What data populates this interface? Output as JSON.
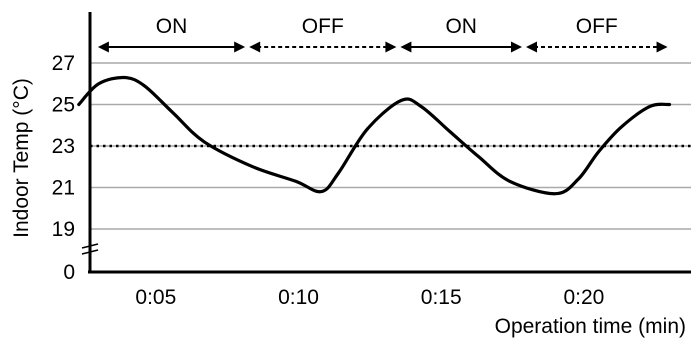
{
  "chart_data": {
    "type": "line",
    "title": "",
    "xlabel": "Operation time (min)",
    "ylabel": "Indoor Temp (°C)",
    "x_ticks": [
      {
        "label": "0:05",
        "minutes": 5
      },
      {
        "label": "0:10",
        "minutes": 10
      },
      {
        "label": "0:15",
        "minutes": 15
      },
      {
        "label": "0:20",
        "minutes": 20
      }
    ],
    "y_ticks": [
      "0",
      "19",
      "21",
      "23",
      "25",
      "27"
    ],
    "y_axis_break": true,
    "grid": {
      "horizontal": true,
      "vertical": false
    },
    "reference_line": {
      "y": 23,
      "style": "dotted"
    },
    "phases": [
      {
        "label": "ON",
        "start": 2.9,
        "end": 8.2,
        "arrow_style": "solid"
      },
      {
        "label": "OFF",
        "start": 8.2,
        "end": 13.5,
        "arrow_style": "dashed"
      },
      {
        "label": "ON",
        "start": 13.5,
        "end": 17.9,
        "arrow_style": "solid"
      },
      {
        "label": "OFF",
        "start": 17.9,
        "end": 23.0,
        "arrow_style": "dashed"
      }
    ],
    "series": [
      {
        "name": "",
        "x": [
          2.3,
          3.0,
          3.9,
          4.6,
          5.6,
          6.7,
          8.4,
          9.9,
          10.8,
          11.4,
          12.4,
          13.6,
          14.3,
          15.3,
          16.3,
          17.4,
          19.0,
          19.8,
          20.5,
          21.3,
          22.3,
          23.0
        ],
        "y": [
          25.0,
          26.0,
          26.3,
          25.9,
          24.6,
          23.2,
          22.0,
          21.3,
          20.8,
          21.7,
          23.8,
          25.2,
          24.9,
          23.7,
          22.5,
          21.3,
          20.7,
          21.4,
          22.7,
          23.9,
          24.9,
          25.0
        ]
      }
    ]
  }
}
